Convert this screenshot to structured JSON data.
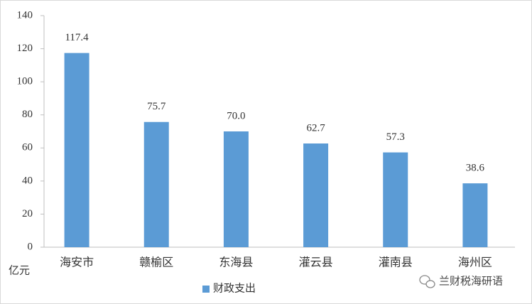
{
  "chart_data": {
    "type": "bar",
    "categories": [
      "海安市",
      "赣榆区",
      "东海县",
      "灌云县",
      "灌南县",
      "海州区"
    ],
    "series": [
      {
        "name": "财政支出",
        "color": "#5b9bd5",
        "values": [
          117.4,
          75.7,
          70.0,
          62.7,
          57.3,
          38.6
        ],
        "value_labels": [
          "117.4",
          "75.7",
          "70.0",
          "62.7",
          "57.3",
          "38.6"
        ]
      }
    ],
    "ylim": [
      0,
      140
    ],
    "yticks": [
      0,
      20,
      40,
      60,
      80,
      100,
      120,
      140
    ],
    "y_axis_label": "亿元",
    "legend": "bottom",
    "watermark": "兰财税海研语"
  }
}
